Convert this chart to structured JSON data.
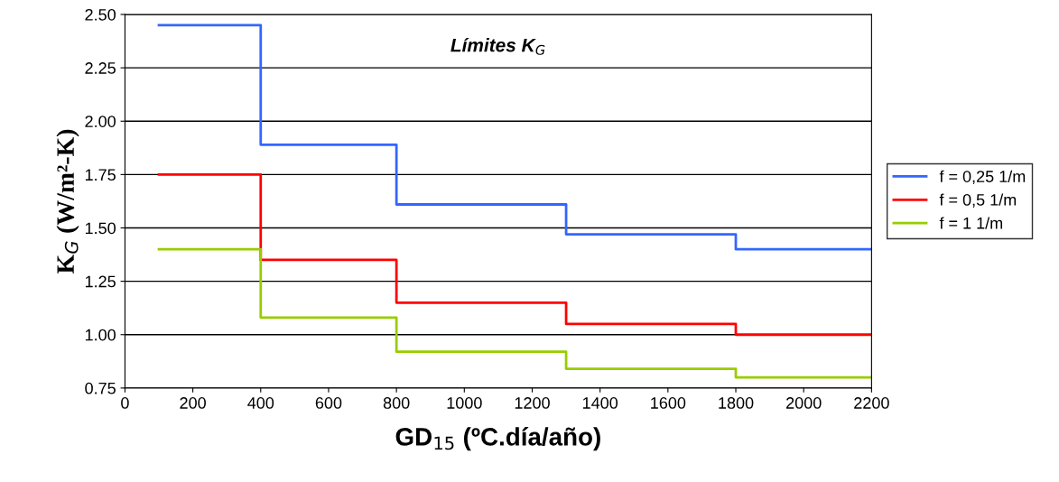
{
  "chart_data": {
    "type": "step",
    "title": "Límites K$_{G}$",
    "xlabel": "GD$_{15}$ (ºC.día/año)",
    "ylabel": "K$_{G}$ (W/m²-K)",
    "x": [
      100,
      400,
      800,
      1300,
      1800,
      2200
    ],
    "series": [
      {
        "name": "f = 0,25 1/m",
        "color": "#3366ff",
        "values": [
          2.45,
          1.89,
          1.61,
          1.47,
          1.4,
          1.4
        ]
      },
      {
        "name": "f = 0,5 1/m",
        "color": "#ff0000",
        "values": [
          1.75,
          1.35,
          1.15,
          1.05,
          1.0,
          1.0
        ]
      },
      {
        "name": "f = 1 1/m",
        "color": "#99cc00",
        "values": [
          1.4,
          1.08,
          0.92,
          0.84,
          0.8,
          0.8
        ]
      }
    ],
    "xlim": [
      0,
      2200
    ],
    "xticks": [
      0,
      200,
      400,
      600,
      800,
      1000,
      1200,
      1400,
      1600,
      1800,
      2000,
      2200
    ],
    "ylim": [
      0.75,
      2.5
    ],
    "yticks": [
      {
        "value": 0.75,
        "label": "0.75"
      },
      {
        "value": 1.0,
        "label": "1.00"
      },
      {
        "value": 1.25,
        "label": "1.25"
      },
      {
        "value": 1.5,
        "label": "1.50"
      },
      {
        "value": 1.75,
        "label": "1.75"
      },
      {
        "value": 2.0,
        "label": "2.00"
      },
      {
        "value": 2.25,
        "label": "2.25"
      },
      {
        "value": 2.5,
        "label": "2.50"
      }
    ],
    "grid": "y",
    "legend": "right",
    "line_style": "solid",
    "marker": "none"
  }
}
